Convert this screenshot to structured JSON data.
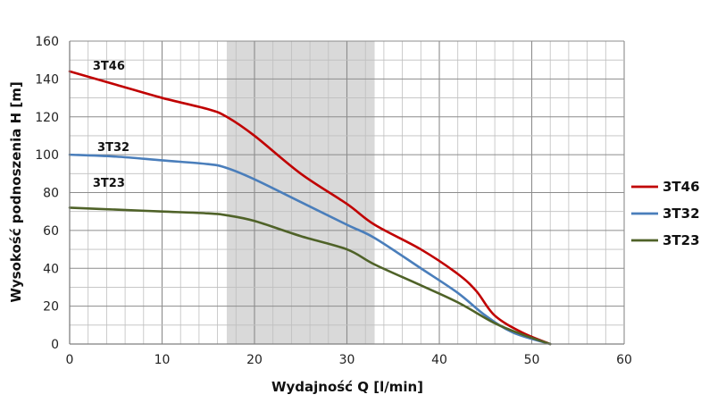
{
  "chart_data": {
    "type": "line",
    "xlabel": "Wydajność Q [l/min]",
    "ylabel": "Wysokość podnoszenia H [m]",
    "xlim": [
      0,
      60
    ],
    "ylim": [
      0,
      160
    ],
    "xticks": [
      0,
      10,
      20,
      30,
      40,
      50,
      60
    ],
    "yticks": [
      0,
      20,
      40,
      60,
      80,
      100,
      120,
      140,
      160
    ],
    "xtick_labels": [
      "0",
      "10",
      "20",
      "30",
      "40",
      "50",
      "60"
    ],
    "ytick_labels": [
      "0",
      "20",
      "40",
      "60",
      "80",
      "100",
      "120",
      "140",
      "160"
    ],
    "minor_x_step": 2,
    "minor_y_step": 10,
    "grid": true,
    "legend_position": "right",
    "highlight_range": [
      17,
      33
    ],
    "highlight_color": "#d9d9d9",
    "series": [
      {
        "name": "3T46",
        "color": "#c00000",
        "label_at": [
          2.5,
          145
        ],
        "x": [
          0,
          5,
          10,
          15,
          17,
          20,
          25,
          30,
          33,
          38,
          42,
          44,
          46,
          49,
          52
        ],
        "y": [
          144,
          137,
          130,
          124,
          120,
          110,
          90,
          74,
          63,
          50,
          37,
          28,
          15,
          6,
          0
        ]
      },
      {
        "name": "3T32",
        "color": "#4a7ebb",
        "label_at": [
          3,
          102
        ],
        "x": [
          0,
          5,
          10,
          15,
          17,
          20,
          25,
          30,
          33,
          38,
          42,
          45,
          48,
          52
        ],
        "y": [
          100,
          99,
          97,
          95,
          93,
          87,
          75,
          63,
          56,
          40,
          27,
          15,
          6,
          0
        ]
      },
      {
        "name": "3T23",
        "color": "#4f6228",
        "label_at": [
          2.5,
          83
        ],
        "x": [
          0,
          5,
          10,
          15,
          17,
          20,
          25,
          30,
          33,
          38,
          42,
          46,
          49,
          52
        ],
        "y": [
          72,
          71,
          70,
          69,
          68,
          65,
          57,
          50,
          42,
          31,
          22,
          11,
          5,
          0
        ]
      }
    ]
  }
}
